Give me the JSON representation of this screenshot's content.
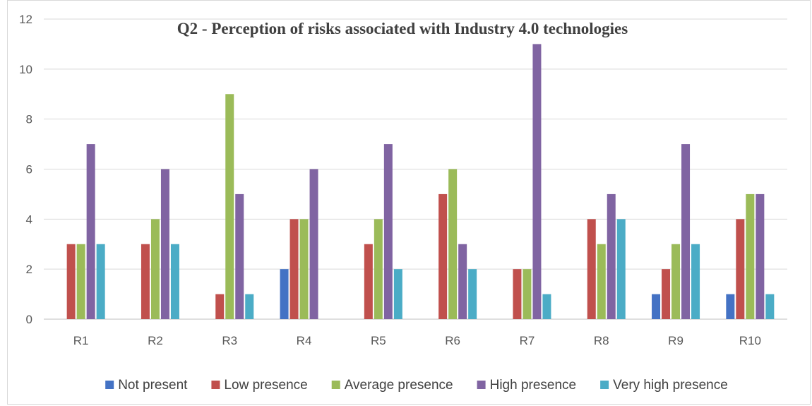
{
  "chart_data": {
    "type": "bar",
    "title": "Q2 - Perception of risks associated with Industry 4.0 technologies",
    "xlabel": "",
    "ylabel": "",
    "ylim": [
      0,
      12
    ],
    "yticks": [
      "0",
      "2",
      "4",
      "6",
      "8",
      "10",
      "12"
    ],
    "grid": true,
    "legend_position": "bottom",
    "categories": [
      "R1",
      "R2",
      "R3",
      "R4",
      "R5",
      "R6",
      "R7",
      "R8",
      "R9",
      "R10"
    ],
    "series": [
      {
        "name": "Not present",
        "color": "#4472C4",
        "values": [
          0,
          0,
          0,
          2,
          0,
          0,
          0,
          0,
          1,
          1
        ]
      },
      {
        "name": "Low presence",
        "color": "#C0504D",
        "values": [
          3,
          3,
          1,
          4,
          3,
          5,
          2,
          4,
          2,
          4
        ]
      },
      {
        "name": "Average presence",
        "color": "#9BBB59",
        "values": [
          3,
          4,
          9,
          4,
          4,
          6,
          2,
          3,
          3,
          5
        ]
      },
      {
        "name": "High presence",
        "color": "#8064A2",
        "values": [
          7,
          6,
          5,
          6,
          7,
          3,
          11,
          5,
          7,
          5
        ]
      },
      {
        "name": "Very high presence",
        "color": "#4BACC6",
        "values": [
          3,
          3,
          1,
          0,
          2,
          2,
          1,
          4,
          3,
          1
        ]
      }
    ]
  }
}
